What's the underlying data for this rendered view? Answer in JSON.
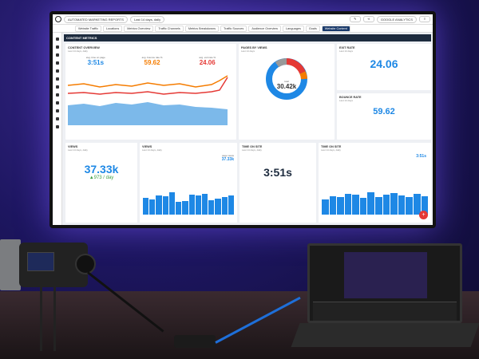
{
  "dashboard": {
    "report_select": "AUTOMATED MARKETING REPORTS",
    "date_select": "Last 14 days, daily",
    "source_select": "GOOGLE ANALYTICS",
    "tabs": [
      "Website Traffic",
      "Locations",
      "Metrics Overview",
      "Traffic Channels",
      "Metrics Breakdowns",
      "Traffic Sources",
      "Audience Overview",
      "Languages",
      "Goals",
      "Website Content"
    ],
    "section_title": "CONTENT METRICS",
    "content_overview": {
      "title": "CONTENT OVERVIEW",
      "subtitle": "Last 14 days, daily",
      "time_label": "avg. time on page",
      "time_value": "3:51s",
      "bounce_label": "avg. bounce rate %",
      "bounce_value": "59.62",
      "exit_label": "avg. exit rate %",
      "exit_value": "24.06"
    },
    "pages_by_views": {
      "title": "PAGES BY VIEWS",
      "subtitle": "Last 14 days",
      "total_label": "total",
      "total_value": "30.42k"
    },
    "exit_rate": {
      "title": "EXIT RATE",
      "subtitle": "Last 14 days",
      "value": "24.06"
    },
    "bounce_rate": {
      "title": "BOUNCE RATE",
      "subtitle": "Last 14 days",
      "value": "59.62"
    },
    "views": {
      "title": "VIEWS",
      "subtitle": "Last 14 days, daily",
      "value": "37.33k",
      "delta": "▲973 / day"
    },
    "views_chart": {
      "title": "VIEWS",
      "subtitle": "Last 14 days, daily",
      "badge_label": "page views",
      "badge_value": "37.33k",
      "bars": [
        60,
        55,
        70,
        65,
        80,
        45,
        50,
        72,
        68,
        75,
        52,
        58,
        64,
        70
      ]
    },
    "time_on_site": {
      "title": "TIME ON SITE",
      "subtitle": "Last 14 days, daily",
      "value": "3:51s"
    },
    "time_on_site_chart": {
      "title": "TIME ON SITE",
      "subtitle": "Last 14 days, daily",
      "badge_value": "3:51s",
      "bars": [
        50,
        62,
        58,
        70,
        66,
        55,
        75,
        60,
        68,
        72,
        64,
        58,
        70,
        62
      ]
    },
    "add_button": "+"
  },
  "colors": {
    "accent": "#1e88e5",
    "orange": "#f57c00",
    "red": "#e53935",
    "header": "#1d2b3e"
  }
}
